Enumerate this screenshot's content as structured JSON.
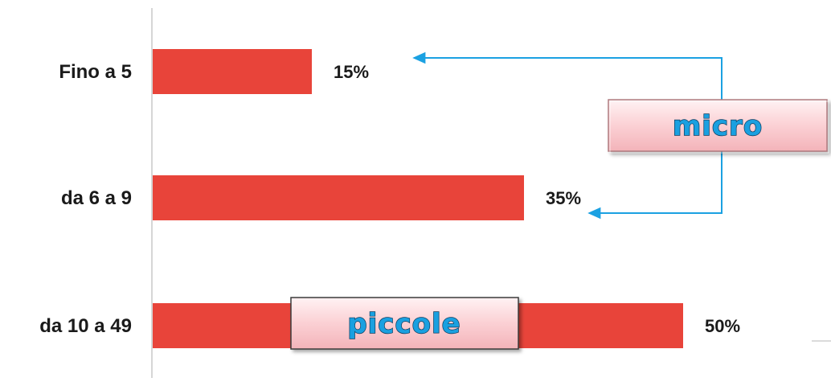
{
  "chart_data": {
    "type": "bar",
    "orientation": "horizontal",
    "categories": [
      "Fino a 5",
      "da 6 a 9",
      "da 10 a 49"
    ],
    "values": [
      15,
      35,
      50
    ],
    "value_labels": [
      "15%",
      "35%",
      "50%"
    ],
    "xlim": [
      0,
      50
    ],
    "grid": false,
    "bar_color": "#e8443a"
  },
  "annotations": {
    "micro": {
      "label": "micro",
      "points_to": [
        "Fino a 5",
        "da 6 a 9"
      ],
      "arrow_color": "#1ba1e2"
    },
    "piccole": {
      "label": "piccole",
      "points_to": [
        "da 10 a 49"
      ]
    }
  },
  "colors": {
    "bar": "#e8443a",
    "arrow": "#1ba1e2",
    "tag_fill": "#fbd0d4",
    "tag_text": "#1aa0e0"
  }
}
